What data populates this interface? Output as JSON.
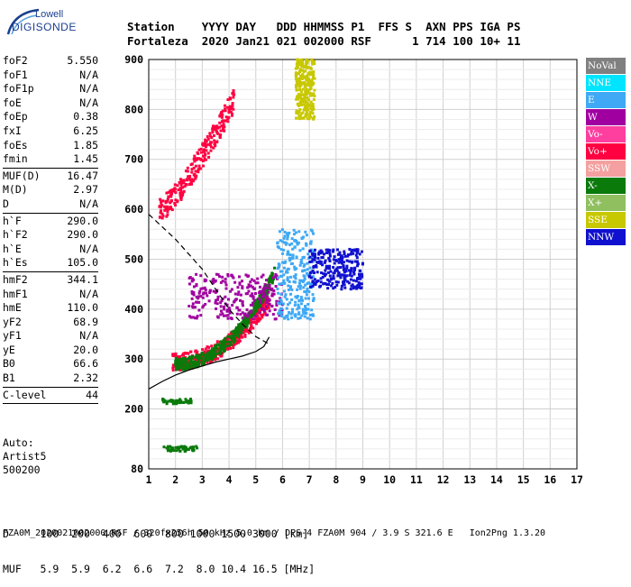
{
  "brand": {
    "line1": "Lowell",
    "line2": "DIGISONDE"
  },
  "header": {
    "line1": "Station    YYYY DAY   DDD HHMMSS P1  FFS S  AXN PPS IGA PS",
    "line2": "Fortaleza  2020 Jan21 021 002000 RSF      1 714 100 10+ 11"
  },
  "params": [
    {
      "name": "foF2",
      "value": "5.550"
    },
    {
      "name": "foF1",
      "value": "N/A"
    },
    {
      "name": "foF1p",
      "value": "N/A"
    },
    {
      "name": "foE",
      "value": "N/A"
    },
    {
      "name": "foEp",
      "value": "0.38"
    },
    {
      "name": "fxI",
      "value": "6.25"
    },
    {
      "name": "foEs",
      "value": "1.85"
    },
    {
      "name": "fmin",
      "value": "1.45"
    },
    {
      "sep": true
    },
    {
      "name": "MUF(D)",
      "value": "16.47"
    },
    {
      "name": "M(D)",
      "value": "2.97"
    },
    {
      "name": "D",
      "value": "N/A"
    },
    {
      "sep": true
    },
    {
      "name": "h`F",
      "value": "290.0"
    },
    {
      "name": "h`F2",
      "value": "290.0"
    },
    {
      "name": "h`E",
      "value": "N/A"
    },
    {
      "name": "h`Es",
      "value": "105.0"
    },
    {
      "sep": true
    },
    {
      "name": "hmF2",
      "value": "344.1"
    },
    {
      "name": "hmF1",
      "value": "N/A"
    },
    {
      "name": "hmE",
      "value": "110.0"
    },
    {
      "name": "yF2",
      "value": "68.9"
    },
    {
      "name": "yF1",
      "value": "N/A"
    },
    {
      "name": "yE",
      "value": "20.0"
    },
    {
      "name": "B0",
      "value": "66.6"
    },
    {
      "name": "B1",
      "value": "2.32"
    },
    {
      "sep": true
    },
    {
      "name": "C-level",
      "value": "44"
    },
    {
      "sep": true
    }
  ],
  "auto": {
    "line1": "Auto:",
    "line2": "Artist5",
    "line3": "500200"
  },
  "mufd": {
    "line1": "D     100  200  400  600  800 1000 1500 3000 [km]",
    "line2": "MUF   5.9  5.9  6.2  6.6  7.2  8.0 10.4 16.5 [MHz]"
  },
  "footer": "FZA0M_2020021002000.RSF / 320fx256h 50 kHz 5.0 km / DPS-4 FZA0M 904 / 3.9 S 321.6 E   Ion2Png 1.3.20",
  "legend": [
    {
      "label": "NoVal",
      "bg": "#808080",
      "fg": "#ffffff"
    },
    {
      "label": "NNE",
      "bg": "#00e5ff",
      "fg": "#ffffff"
    },
    {
      "label": "E",
      "bg": "#3fa9f5",
      "fg": "#ffffff"
    },
    {
      "label": "W",
      "bg": "#a000a0",
      "fg": "#ffffff"
    },
    {
      "label": "Vo-",
      "bg": "#ff3fa0",
      "fg": "#ffffff"
    },
    {
      "label": "Vo+",
      "bg": "#ff0040",
      "fg": "#ffffff"
    },
    {
      "label": "SSW",
      "bg": "#f5a0a0",
      "fg": "#ffffff"
    },
    {
      "label": "X-",
      "bg": "#0a7a0a",
      "fg": "#ffffff"
    },
    {
      "label": "X+",
      "bg": "#8fbf5f",
      "fg": "#ffffff"
    },
    {
      "label": "SSE",
      "bg": "#c8c800",
      "fg": "#ffffff"
    },
    {
      "label": "NNW",
      "bg": "#1010d0",
      "fg": "#ffffff"
    }
  ],
  "chart_data": {
    "type": "scatter",
    "xlim": [
      1,
      17
    ],
    "ylim": [
      80,
      900
    ],
    "xticks": [
      1,
      2,
      3,
      4,
      5,
      6,
      7,
      8,
      9,
      10,
      11,
      12,
      13,
      14,
      15,
      16,
      17
    ],
    "yticks": [
      80,
      200,
      300,
      400,
      500,
      600,
      700,
      800,
      900
    ],
    "grid": true,
    "legend_position": "right",
    "trace_clusters": [
      {
        "series": "Vo+",
        "freq": [
          1.9,
          5.5
        ],
        "height": [
          295,
          420
        ],
        "shape": "o-trace"
      },
      {
        "series": "X-",
        "freq": [
          2.0,
          5.7
        ],
        "height": [
          290,
          470
        ],
        "shape": "x-trace"
      },
      {
        "series": "Vo+",
        "freq": [
          1.4,
          4.2
        ],
        "height": [
          600,
          820
        ],
        "shape": "multihop"
      },
      {
        "series": "W",
        "freq": [
          2.5,
          6.0
        ],
        "height": [
          380,
          470
        ],
        "shape": "patch"
      },
      {
        "series": "E",
        "freq": [
          5.8,
          7.2
        ],
        "height": [
          380,
          560
        ],
        "shape": "patch"
      },
      {
        "series": "NNW",
        "freq": [
          7.0,
          9.0
        ],
        "height": [
          440,
          520
        ],
        "shape": "patch"
      },
      {
        "series": "SSE",
        "freq": [
          6.5,
          7.2
        ],
        "height": [
          780,
          900
        ],
        "shape": "patch"
      },
      {
        "series": "X-",
        "freq": [
          1.5,
          2.6
        ],
        "height": [
          210,
          220
        ],
        "shape": "es-trace"
      },
      {
        "series": "X-",
        "freq": [
          1.5,
          2.9
        ],
        "height": [
          115,
          125
        ],
        "shape": "es-trace"
      }
    ],
    "profile_curve": {
      "freq": [
        1.0,
        1.5,
        2.0,
        2.5,
        3.0,
        3.5,
        4.0,
        4.5,
        5.0,
        5.3,
        5.5
      ],
      "height": [
        240,
        255,
        268,
        278,
        286,
        294,
        300,
        306,
        315,
        325,
        344
      ]
    },
    "muf_curve": {
      "freq": [
        1.0,
        1.5,
        2.0,
        2.5,
        3.0,
        3.5,
        4.0,
        4.5,
        5.0,
        5.5
      ],
      "height": [
        590,
        565,
        540,
        510,
        480,
        440,
        400,
        370,
        345,
        330
      ]
    }
  }
}
